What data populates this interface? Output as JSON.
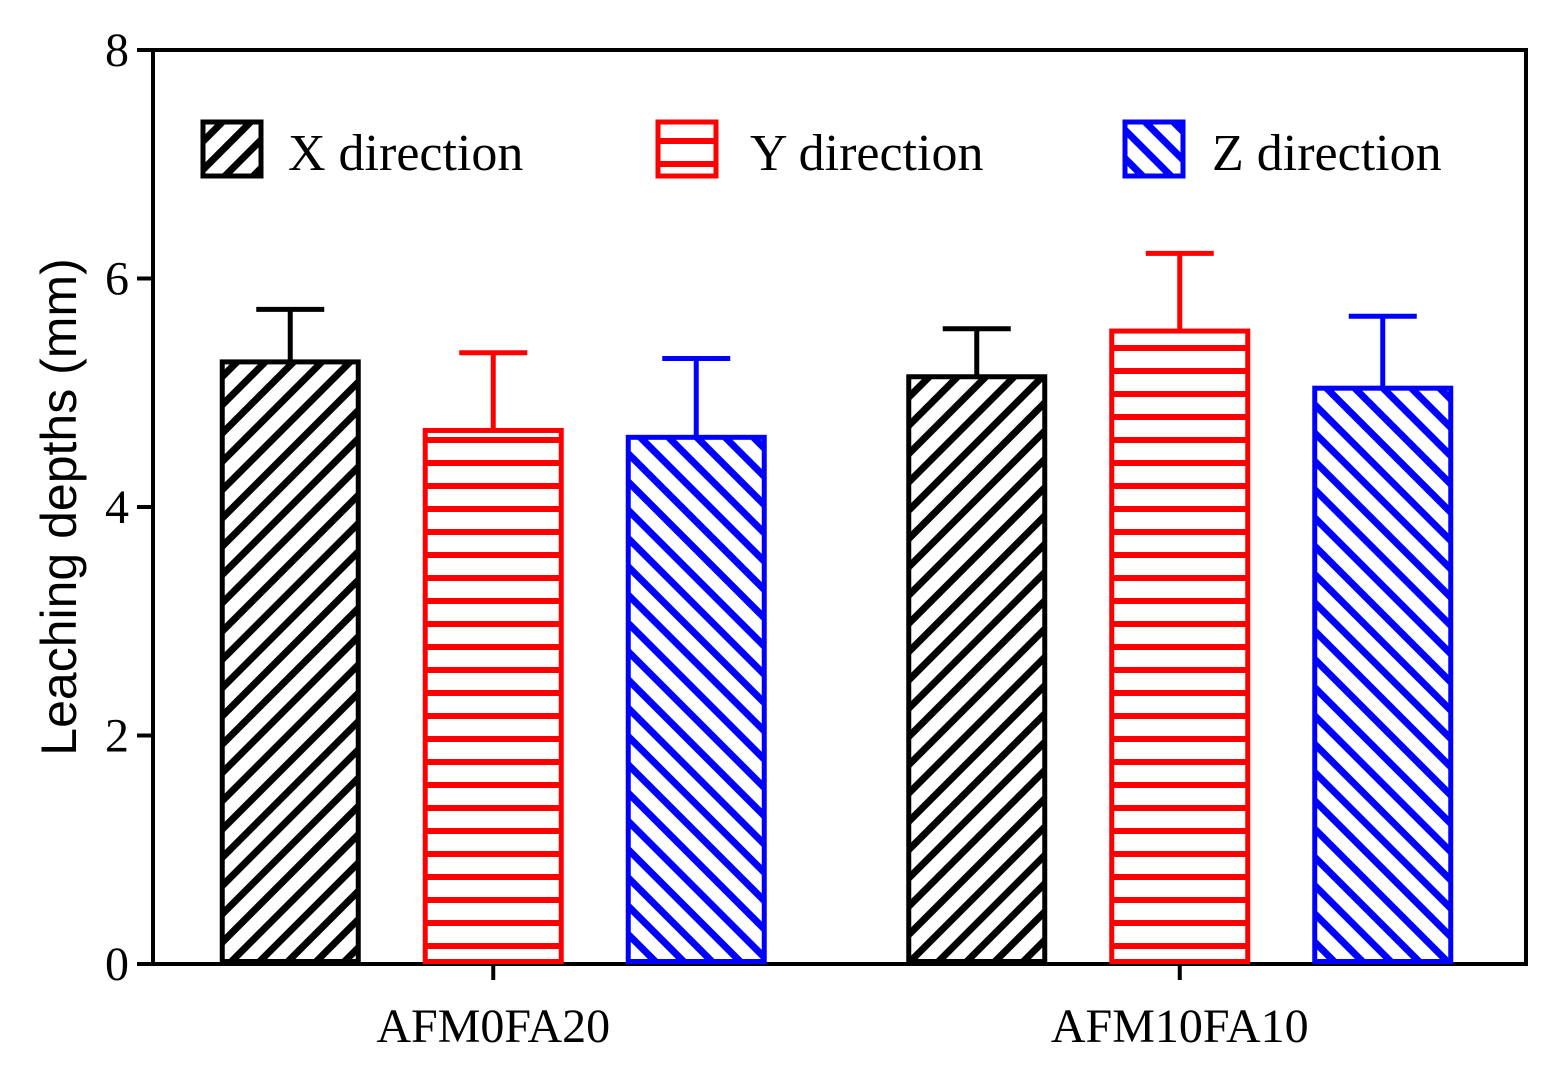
{
  "chart_data": {
    "type": "bar",
    "title": "",
    "xlabel": "",
    "ylabel": "Leaching depths (mm)",
    "ylim": [
      0,
      8
    ],
    "yticks": [
      0,
      2,
      4,
      6,
      8
    ],
    "grid": false,
    "legend_position": "top",
    "categories": [
      "AFM0FA20",
      "AFM10FA10"
    ],
    "series": [
      {
        "name": "X direction",
        "color": "#000000",
        "pattern": "diagonal-up",
        "values": [
          5.27,
          5.14
        ],
        "errors": [
          0.46,
          0.42
        ]
      },
      {
        "name": "Y direction",
        "color": "#ff0000",
        "pattern": "horizontal",
        "values": [
          4.67,
          5.54
        ],
        "errors": [
          0.68,
          0.68
        ]
      },
      {
        "name": "Z direction",
        "color": "#0000ff",
        "pattern": "diagonal-down",
        "values": [
          4.61,
          5.04
        ],
        "errors": [
          0.69,
          0.63
        ]
      }
    ]
  }
}
